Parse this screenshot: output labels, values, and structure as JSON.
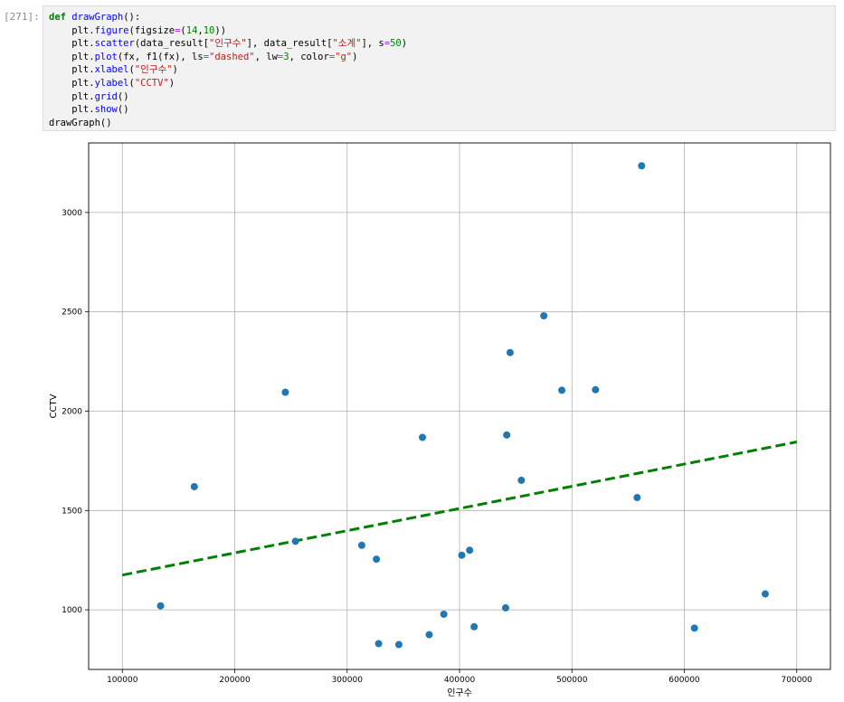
{
  "cell": {
    "prompt": "[271]:",
    "code_lines": [
      [
        {
          "t": "def",
          "c": "kw"
        },
        {
          "t": " "
        },
        {
          "t": "drawGraph",
          "c": "fn"
        },
        {
          "t": "():"
        }
      ],
      [
        {
          "t": "    plt."
        },
        {
          "t": "figure",
          "c": "fn"
        },
        {
          "t": "(figsize"
        },
        {
          "t": "=",
          "c": "op"
        },
        {
          "t": "("
        },
        {
          "t": "14",
          "c": "num"
        },
        {
          "t": ","
        },
        {
          "t": "10",
          "c": "num"
        },
        {
          "t": "))"
        }
      ],
      [
        {
          "t": "    plt."
        },
        {
          "t": "scatter",
          "c": "fn"
        },
        {
          "t": "(data_result["
        },
        {
          "t": "\"인구수\"",
          "c": "str"
        },
        {
          "t": "], data_result["
        },
        {
          "t": "\"소계\"",
          "c": "str"
        },
        {
          "t": "], s"
        },
        {
          "t": "=",
          "c": "op"
        },
        {
          "t": "50",
          "c": "num"
        },
        {
          "t": ")"
        }
      ],
      [
        {
          "t": "    plt."
        },
        {
          "t": "plot",
          "c": "fn"
        },
        {
          "t": "(fx, f1(fx), ls"
        },
        {
          "t": "=",
          "c": "op"
        },
        {
          "t": "\"dashed\"",
          "c": "str"
        },
        {
          "t": ", lw"
        },
        {
          "t": "=",
          "c": "op"
        },
        {
          "t": "3",
          "c": "num"
        },
        {
          "t": ", color"
        },
        {
          "t": "=",
          "c": "op"
        },
        {
          "t": "\"g\"",
          "c": "str"
        },
        {
          "t": ")"
        }
      ],
      [
        {
          "t": "    plt."
        },
        {
          "t": "xlabel",
          "c": "fn"
        },
        {
          "t": "("
        },
        {
          "t": "\"인구수\"",
          "c": "str"
        },
        {
          "t": ")"
        }
      ],
      [
        {
          "t": "    plt."
        },
        {
          "t": "ylabel",
          "c": "fn"
        },
        {
          "t": "("
        },
        {
          "t": "\"CCTV\"",
          "c": "str"
        },
        {
          "t": ")"
        }
      ],
      [
        {
          "t": "    plt."
        },
        {
          "t": "grid",
          "c": "fn"
        },
        {
          "t": "()"
        }
      ],
      [
        {
          "t": "    plt."
        },
        {
          "t": "show",
          "c": "fn"
        },
        {
          "t": "()"
        }
      ],
      [
        {
          "t": "drawGraph()"
        }
      ]
    ]
  },
  "colors": {
    "scatter": "#1f77b4",
    "trend": "#007f00",
    "grid": "#b0b0b0"
  },
  "chart_data": {
    "type": "scatter",
    "xlabel": "인구수",
    "ylabel": "CCTV",
    "xlim": [
      70000,
      730000
    ],
    "ylim": [
      700,
      3350
    ],
    "x_ticks": [
      100000,
      200000,
      300000,
      400000,
      500000,
      600000,
      700000
    ],
    "y_ticks": [
      1000,
      1500,
      2000,
      2500,
      3000
    ],
    "grid": true,
    "points": [
      {
        "x": 134000,
        "y": 1020
      },
      {
        "x": 164000,
        "y": 1620
      },
      {
        "x": 245000,
        "y": 2095
      },
      {
        "x": 254000,
        "y": 1345
      },
      {
        "x": 313000,
        "y": 1325
      },
      {
        "x": 326000,
        "y": 1255
      },
      {
        "x": 328000,
        "y": 830
      },
      {
        "x": 346000,
        "y": 825
      },
      {
        "x": 367000,
        "y": 1868
      },
      {
        "x": 373000,
        "y": 875
      },
      {
        "x": 386000,
        "y": 978
      },
      {
        "x": 402000,
        "y": 1275
      },
      {
        "x": 409000,
        "y": 1300
      },
      {
        "x": 413000,
        "y": 915
      },
      {
        "x": 441000,
        "y": 1010
      },
      {
        "x": 442000,
        "y": 1880
      },
      {
        "x": 445000,
        "y": 2295
      },
      {
        "x": 455000,
        "y": 1652
      },
      {
        "x": 475000,
        "y": 2480
      },
      {
        "x": 491000,
        "y": 2105
      },
      {
        "x": 521000,
        "y": 2108
      },
      {
        "x": 558000,
        "y": 1565
      },
      {
        "x": 562000,
        "y": 3235
      },
      {
        "x": 609000,
        "y": 908
      },
      {
        "x": 672000,
        "y": 1080
      }
    ],
    "trend_line": {
      "style": "dashed",
      "x": [
        100000,
        700000
      ],
      "y": [
        1175,
        1845
      ]
    }
  }
}
